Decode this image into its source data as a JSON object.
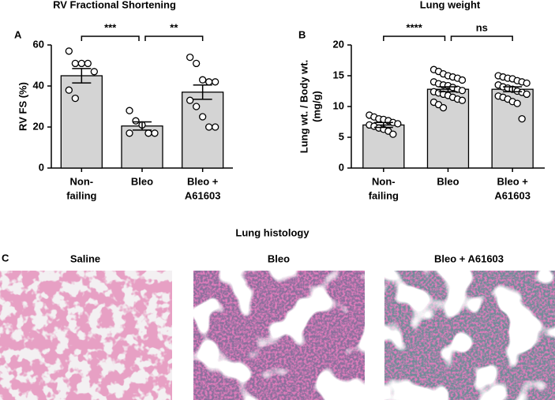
{
  "chart_data": [
    {
      "type": "bar",
      "panel_label": "A",
      "title": "RV Fractional Shortening",
      "ylabel": [
        "RV FS (%)"
      ],
      "categories": [
        [
          "Non-",
          "failing"
        ],
        [
          "Bleo"
        ],
        [
          "Bleo +",
          "A61603"
        ]
      ],
      "values": [
        45,
        20.5,
        37
      ],
      "errors": [
        3.5,
        2,
        3.5
      ],
      "points": [
        [
          57,
          51,
          51,
          51,
          47,
          38,
          34
        ],
        [
          28,
          23,
          21,
          17,
          17,
          17
        ],
        [
          54,
          51,
          43,
          42,
          42,
          33,
          30,
          25,
          20,
          20
        ]
      ],
      "comparisons": [
        {
          "groups": [
            0,
            1
          ],
          "label": "***"
        },
        {
          "groups": [
            1,
            2
          ],
          "label": "**"
        }
      ],
      "color": "#d4d4d4",
      "ylim": [
        0,
        60
      ],
      "yticks": [
        0,
        20,
        40,
        60
      ]
    },
    {
      "type": "bar",
      "panel_label": "B",
      "title": "Lung weight",
      "ylabel": [
        "Lung wt. / Body wt.",
        "(mg/g)"
      ],
      "categories": [
        [
          "Non-",
          "failing"
        ],
        [
          "Bleo"
        ],
        [
          "Bleo +",
          "A61603"
        ]
      ],
      "values": [
        7,
        12.8,
        12.8
      ],
      "errors": [
        0.4,
        0.4,
        0.4
      ],
      "points": [
        [
          8.6,
          8.3,
          8.0,
          7.9,
          7.7,
          7.4,
          7.2,
          7.0,
          6.8,
          6.5,
          6.3,
          6.0,
          5.5
        ],
        [
          16,
          15.7,
          15.3,
          15,
          14.8,
          14.6,
          14.3,
          14,
          13.7,
          13.5,
          13.4,
          13.1,
          12.8,
          12.6,
          12.4,
          12.2,
          12,
          11.8,
          11.5,
          11.2,
          11,
          10.7,
          10.3,
          9.8
        ],
        [
          15,
          14.8,
          14.6,
          14.5,
          14.2,
          14,
          13.8,
          13.5,
          13.2,
          13,
          12.8,
          12.5,
          12.3,
          12,
          11.7,
          11.5,
          11.2,
          10.8,
          10.5,
          8
        ]
      ],
      "comparisons": [
        {
          "groups": [
            0,
            1
          ],
          "label": "****"
        },
        {
          "groups": [
            1,
            2
          ],
          "label": "ns"
        }
      ],
      "color": "#d4d4d4",
      "ylim": [
        0,
        20
      ],
      "yticks": [
        0,
        5,
        10,
        15,
        20
      ]
    }
  ],
  "histology": {
    "panel_label": "C",
    "title": "Lung histology",
    "images": [
      "Saline",
      "Bleo",
      "Bleo + A61603"
    ]
  }
}
